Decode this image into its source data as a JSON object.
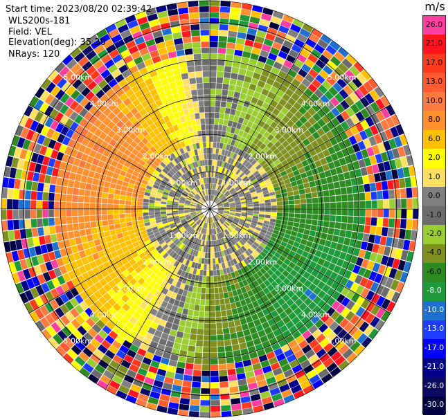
{
  "header": {
    "start_time": "Start time: 2023/08/20 02:39:42",
    "site": "WLS200s-181",
    "field": "Field: VEL",
    "elevation": "Elevation(deg): 35.30",
    "nrays": "NRays: 120"
  },
  "colorbar": {
    "unit": "m/s",
    "ticks": [
      "26.0",
      "21.0",
      "17.0",
      "13.0",
      "10.0",
      "8.0",
      "6.0",
      "2.0",
      "1.0",
      "0.0",
      "-1.0",
      "-2.0",
      "-4.0",
      "-6.0",
      "-8.0",
      "-10.0",
      "-13.0",
      "-17.0",
      "-21.0",
      "-26.0",
      "-30.0"
    ],
    "colors": [
      "#ff3fa0",
      "#ff1420",
      "#ff3a1e",
      "#ff5a30",
      "#ff7a40",
      "#ff9030",
      "#ffc000",
      "#ffff00",
      "#ffe060",
      "#7f7f7f",
      "#6c6c6c",
      "#9acd32",
      "#7f8f20",
      "#2e8b22",
      "#1e9a3a",
      "#1e6fd0",
      "#1e3cff",
      "#0000ff",
      "#00008b",
      "#0a0a60",
      "#000040"
    ]
  },
  "chart_data": {
    "type": "ppi-polar-scan",
    "field": "VEL",
    "unit": "m/s",
    "nrays": 120,
    "elevation_deg": 35.3,
    "range_rings_km": [
      1.0,
      2.0,
      3.0,
      4.0,
      5.0
    ],
    "range_labels": [
      "1.00km",
      "2.00km",
      "3.00km",
      "4.00km",
      "5.00km"
    ],
    "max_range_km": 5.6,
    "wind_sectors": [
      {
        "azimuth_deg": 0,
        "near_value": 0.0,
        "far_value": -2.0
      },
      {
        "azimuth_deg": 45,
        "near_value": -2.0,
        "far_value": -6.0
      },
      {
        "azimuth_deg": 90,
        "near_value": -4.0,
        "far_value": -8.0
      },
      {
        "azimuth_deg": 135,
        "near_value": -6.0,
        "far_value": -10.0
      },
      {
        "azimuth_deg": 180,
        "near_value": -2.0,
        "far_value": -6.0
      },
      {
        "azimuth_deg": 225,
        "near_value": 2.0,
        "far_value": 6.0
      },
      {
        "azimuth_deg": 270,
        "near_value": 6.0,
        "far_value": 10.0
      },
      {
        "azimuth_deg": 315,
        "near_value": 6.0,
        "far_value": 10.0
      }
    ]
  }
}
